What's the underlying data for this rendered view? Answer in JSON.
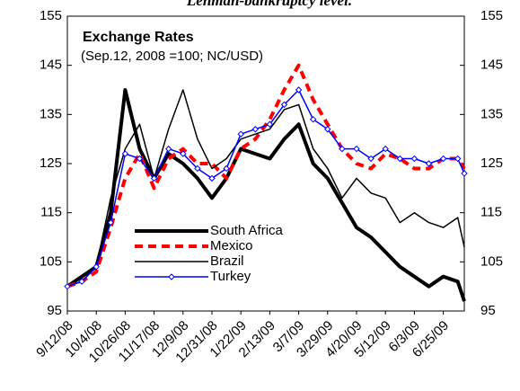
{
  "chart_data": {
    "type": "line",
    "title": "Lehman-bankruptcy level.",
    "annotations": [
      "Exchange Rates",
      "(Sep.12, 2008 =100; NC/USD)"
    ],
    "x": [
      "9/12/08",
      "9/23/08",
      "10/4/08",
      "10/15/08",
      "10/26/08",
      "11/6/08",
      "11/17/08",
      "11/28/08",
      "12/9/08",
      "12/20/08",
      "12/31/08",
      "1/11/09",
      "1/22/09",
      "2/2/09",
      "2/13/09",
      "2/24/09",
      "3/7/09",
      "3/18/09",
      "3/29/09",
      "4/9/09",
      "4/20/09",
      "5/1/09",
      "5/12/09",
      "5/23/09",
      "6/3/09",
      "6/14/09",
      "6/25/09",
      "7/6/09",
      "7/11/09"
    ],
    "xlim": [
      "9/12/08",
      "7/11/09"
    ],
    "xticks": [
      "9/12/08",
      "10/4/08",
      "10/26/08",
      "11/17/08",
      "12/9/08",
      "12/31/08",
      "1/22/09",
      "2/13/09",
      "3/7/09",
      "3/29/09",
      "4/20/09",
      "5/12/09",
      "6/3/09",
      "6/25/09"
    ],
    "ylim": [
      95,
      155
    ],
    "yticks": [
      95,
      105,
      115,
      125,
      135,
      145,
      155
    ],
    "y2lim": [
      95,
      155
    ],
    "y2ticks": [
      95,
      105,
      115,
      125,
      135,
      145,
      155
    ],
    "series": [
      {
        "name": "South Africa",
        "color": "#000000",
        "values": [
          100,
          102,
          104,
          115,
          140,
          128,
          122,
          127,
          125,
          122,
          118,
          122,
          128,
          127,
          126,
          130,
          133,
          125,
          122,
          117,
          112,
          110,
          107,
          104,
          102,
          100,
          102,
          101,
          97
        ]
      },
      {
        "name": "Mexico",
        "color": "#ff0000",
        "values": [
          100,
          101,
          103,
          112,
          122,
          127,
          120,
          126,
          128,
          125,
          125,
          122,
          128,
          130,
          134,
          140,
          145,
          138,
          133,
          128,
          125,
          124,
          127,
          126,
          124,
          124,
          126,
          126,
          124
        ]
      },
      {
        "name": "Brazil",
        "color": "#000000",
        "values": [
          100,
          101,
          104,
          118,
          128,
          133,
          122,
          132,
          140,
          130,
          124,
          126,
          130,
          131,
          132,
          136,
          137,
          128,
          124,
          118,
          122,
          119,
          118,
          113,
          115,
          113,
          112,
          114,
          108
        ]
      },
      {
        "name": "Turkey",
        "color": "#0000ff",
        "values": [
          100,
          101,
          104,
          113,
          127,
          126,
          122,
          128,
          127,
          124,
          122,
          124,
          131,
          132,
          133,
          137,
          140,
          134,
          132,
          128,
          128,
          126,
          128,
          126,
          126,
          125,
          126,
          126,
          123
        ]
      }
    ]
  }
}
